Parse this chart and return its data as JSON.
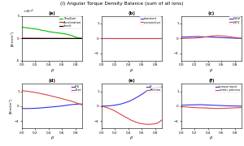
{
  "title": "(I) Angular Torque Density Balance (sum of all ions)",
  "rho": [
    0.0,
    0.05,
    0.1,
    0.15,
    0.2,
    0.25,
    0.3,
    0.35,
    0.4,
    0.45,
    0.5,
    0.55,
    0.6,
    0.65,
    0.7,
    0.75,
    0.8,
    0.85,
    0.9
  ],
  "panels": [
    {
      "label": "(a)",
      "ylabel": "[N·m/m³]",
      "ylim": [
        -5e-05,
        5e-05
      ],
      "ytick_exp": -5,
      "lines": [
        {
          "name": "TorqSum",
          "color": "#00bb00",
          "style": "-",
          "marker": "none",
          "data": [
            2.5e-05,
            2.4e-05,
            2.3e-05,
            2.2e-05,
            2.1e-05,
            2e-05,
            1.8e-05,
            1.7e-05,
            1.5e-05,
            1.4e-05,
            1.3e-05,
            1.2e-05,
            1.1e-05,
            1e-05,
            8e-06,
            6e-06,
            3e-06,
            1e-06,
            1e-07
          ]
        },
        {
          "name": "Acceleration",
          "color": "#dd2222",
          "style": "-",
          "marker": "none",
          "data": [
            5e-07,
            5e-07,
            4e-07,
            4e-07,
            3e-07,
            3e-07,
            2e-07,
            2e-07,
            1e-07,
            1e-07,
            1e-07,
            1e-07,
            5e-08,
            5e-08,
            3e-08,
            2e-08,
            1e-08,
            1e-08,
            1e-08
          ]
        },
        {
          "name": "check",
          "color": "#000000",
          "style": "-",
          "marker": "none",
          "data": [
            0.0,
            0.0,
            0.0,
            0.0,
            0.0,
            0.0,
            0.0,
            0.0,
            0.0,
            0.0,
            0.0,
            0.0,
            0.0,
            0.0,
            0.0,
            0.0,
            0.0,
            0.0,
            0.0
          ]
        }
      ]
    },
    {
      "label": "(b)",
      "ylabel": "",
      "ylim": [
        -1.5,
        1.5
      ],
      "ytick_exp": null,
      "lines": [
        {
          "name": "transient",
          "color": "#3333dd",
          "style": "-",
          "marker": "none",
          "data": [
            0.0,
            0.0,
            0.0,
            0.0,
            0.0,
            0.0,
            0.0,
            0.0,
            0.0,
            0.0,
            0.0,
            0.0,
            0.0,
            0.0,
            0.0,
            0.0,
            0.0,
            0.0,
            0.0
          ]
        },
        {
          "name": "-convective",
          "color": "#dd4444",
          "style": "-",
          "marker": "none",
          "data": [
            0.0,
            0.0,
            0.0,
            0.0,
            0.0,
            0.0,
            0.0,
            0.0,
            0.0,
            0.0,
            0.0,
            0.0,
            0.0,
            0.0,
            0.0,
            0.0,
            0.0,
            0.0,
            0.0
          ]
        }
      ]
    },
    {
      "label": "(c)",
      "ylabel": "",
      "ylim": [
        -1.5,
        1.5
      ],
      "ytick_exp": null,
      "lines": [
        {
          "name": "-NGV",
          "color": "#3333dd",
          "style": "-",
          "marker": "none",
          "data": [
            0.08,
            0.09,
            0.1,
            0.11,
            0.12,
            0.12,
            0.11,
            0.1,
            0.09,
            0.08,
            0.07,
            0.06,
            0.05,
            0.04,
            0.03,
            0.02,
            0.01,
            0.005,
            0.001
          ]
        },
        {
          "name": "-NTV",
          "color": "#dd4444",
          "style": "-",
          "marker": "none",
          "data": [
            0.0,
            0.0,
            0.005,
            0.01,
            0.02,
            0.04,
            0.06,
            0.09,
            0.12,
            0.15,
            0.17,
            0.18,
            0.17,
            0.15,
            0.12,
            0.09,
            0.06,
            0.03,
            0.01
          ]
        }
      ]
    },
    {
      "label": "(d)",
      "ylabel": "[N·m/m³]",
      "ylim": [
        -1.5,
        1.5
      ],
      "ytick_exp": null,
      "lines": [
        {
          "name": "-RS",
          "color": "#3333dd",
          "style": "-",
          "marker": "none",
          "data": [
            -0.15,
            -0.16,
            -0.16,
            -0.15,
            -0.14,
            -0.13,
            -0.11,
            -0.09,
            -0.07,
            -0.05,
            -0.03,
            -0.01,
            0.02,
            0.05,
            0.08,
            0.11,
            0.13,
            0.14,
            0.15
          ]
        },
        {
          "name": "Etor",
          "color": "#dd4444",
          "style": "-",
          "marker": "none",
          "data": [
            1.05,
            1.02,
            0.99,
            0.96,
            0.92,
            0.88,
            0.83,
            0.78,
            0.73,
            0.67,
            0.62,
            0.56,
            0.5,
            0.44,
            0.38,
            0.32,
            0.24,
            0.16,
            0.08
          ]
        }
      ]
    },
    {
      "label": "(e)",
      "ylabel": "",
      "ylim": [
        -1.5,
        1.5
      ],
      "ytick_exp": null,
      "lines": [
        {
          "name": "VI",
          "color": "#3333dd",
          "style": "-",
          "marker": "none",
          "data": [
            0.0,
            0.01,
            0.02,
            0.04,
            0.07,
            0.11,
            0.16,
            0.23,
            0.31,
            0.41,
            0.53,
            0.66,
            0.8,
            0.95,
            1.08,
            1.18,
            1.25,
            1.28,
            1.3
          ]
        },
        {
          "name": "Friction",
          "color": "#dd4444",
          "style": "-",
          "marker": "none",
          "data": [
            0.0,
            -0.06,
            -0.13,
            -0.22,
            -0.33,
            -0.46,
            -0.59,
            -0.72,
            -0.84,
            -0.96,
            -1.05,
            -1.13,
            -1.18,
            -1.21,
            -1.22,
            -1.21,
            -1.18,
            -1.1,
            -0.92
          ]
        }
      ]
    },
    {
      "label": "(f)",
      "ylabel": "",
      "ylim": [
        -1.5,
        1.5
      ],
      "ytick_exp": null,
      "lines": [
        {
          "name": "torque input",
          "color": "#3333dd",
          "style": "-",
          "marker": "none",
          "data": [
            0.06,
            0.07,
            0.08,
            0.09,
            0.09,
            0.1,
            0.1,
            0.09,
            0.08,
            0.07,
            0.06,
            0.05,
            0.04,
            0.03,
            0.025,
            0.02,
            0.015,
            0.01,
            0.008
          ]
        },
        {
          "name": "-atmic process",
          "color": "#dd4444",
          "style": "-",
          "marker": "none",
          "data": [
            -0.04,
            -0.05,
            -0.06,
            -0.08,
            -0.09,
            -0.1,
            -0.11,
            -0.12,
            -0.13,
            -0.14,
            -0.15,
            -0.15,
            -0.15,
            -0.14,
            -0.13,
            -0.12,
            -0.11,
            -0.1,
            -0.09
          ]
        }
      ]
    }
  ]
}
